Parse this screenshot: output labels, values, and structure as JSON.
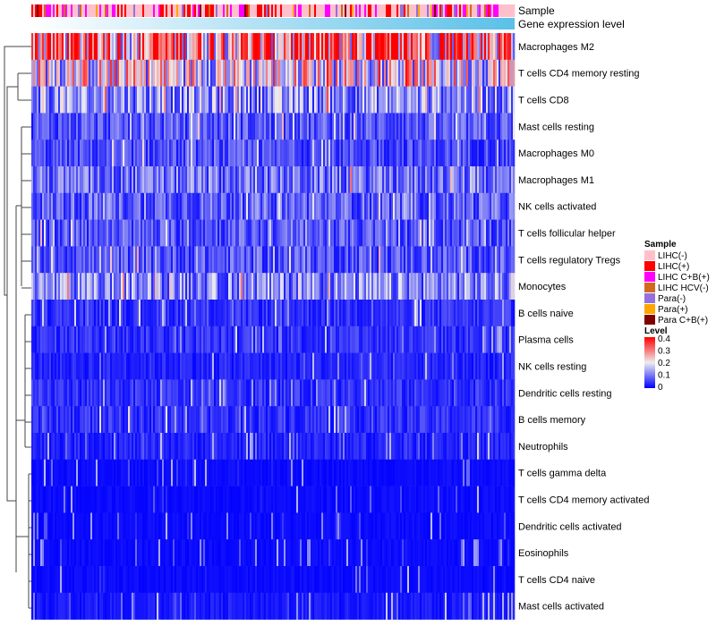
{
  "chart_data": {
    "type": "heatmap",
    "annotations": [
      "Sample",
      "Gene expression level"
    ],
    "rows": [
      "Macrophages M2",
      "T cells CD4 memory resting",
      "T cells CD8",
      "Mast cells resting",
      "Macrophages M0",
      "Macrophages M1",
      "NK cells activated",
      "T cells follicular helper",
      "T cells regulatory  Tregs",
      "Monocytes",
      "B cells naive",
      "Plasma cells",
      "NK cells resting",
      "Dendritic cells resting",
      "B cells memory",
      "Neutrophils",
      "T cells gamma delta",
      "T cells CD4 memory activated",
      "Dendritic cells activated",
      "Eosinophils",
      "T cells CD4 naive",
      "Mast cells activated"
    ],
    "row_mean_level": [
      0.3,
      0.2,
      0.12,
      0.07,
      0.06,
      0.09,
      0.08,
      0.07,
      0.07,
      0.11,
      0.04,
      0.04,
      0.03,
      0.04,
      0.04,
      0.03,
      0.01,
      0.01,
      0.01,
      0.01,
      0.01,
      0.02
    ],
    "sample_legend": {
      "title": "Sample",
      "items": [
        {
          "label": "LIHC(-)",
          "color": "#FFC0CB"
        },
        {
          "label": "LIHC(+)",
          "color": "#FF0000"
        },
        {
          "label": "LIHC C+B(+)",
          "color": "#FF00FF"
        },
        {
          "label": "LIHC HCV(-)",
          "color": "#D2691E"
        },
        {
          "label": "Para(-)",
          "color": "#9370DB"
        },
        {
          "label": "Para(+)",
          "color": "#FFA500"
        },
        {
          "label": "Para C+B(+)",
          "color": "#800000"
        }
      ]
    },
    "level_legend": {
      "title": "Level",
      "ticks": [
        "0.4",
        "0.3",
        "0.2",
        "0.1",
        "0"
      ],
      "range": [
        0,
        0.4
      ],
      "colors": [
        "#0000FF",
        "#EEEEEE",
        "#FF0000"
      ]
    },
    "gene_expression_gradient": [
      "#FFFFFF",
      "#5BC0E8"
    ],
    "n_columns": 270
  }
}
